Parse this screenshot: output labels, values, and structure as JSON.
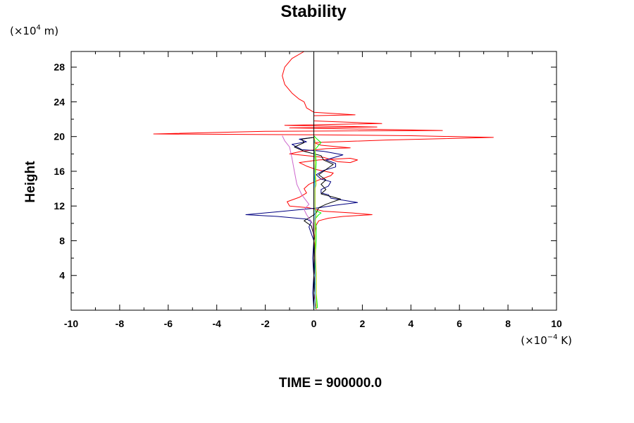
{
  "chart_data": {
    "type": "line",
    "title": "Stability",
    "ylabel": "Height",
    "xlabel": "",
    "y_unit": {
      "base": "(×10",
      "exp": "4",
      "suffix": " m)"
    },
    "x_unit": {
      "base": "(×10",
      "exp": "−4",
      "suffix": " K)"
    },
    "xlim": [
      -10,
      10
    ],
    "ylim": [
      0,
      29.8
    ],
    "x_ticks": [
      -10,
      -8,
      -6,
      -4,
      -2,
      0,
      2,
      4,
      6,
      8,
      10
    ],
    "y_ticks": [
      4,
      8,
      12,
      16,
      20,
      24,
      28
    ],
    "footer": "TIME = 900000.0",
    "grid": false,
    "series": [
      {
        "color": "#ff0000",
        "points": [
          [
            0.1,
            0.1
          ],
          [
            0.05,
            1
          ],
          [
            0,
            2
          ],
          [
            0.05,
            3
          ],
          [
            0,
            4
          ],
          [
            0.05,
            5
          ],
          [
            0.02,
            6
          ],
          [
            0.05,
            7
          ],
          [
            0,
            8
          ],
          [
            0.05,
            9
          ],
          [
            0.1,
            9.8
          ],
          [
            0.2,
            10.3
          ],
          [
            0.6,
            10.6
          ],
          [
            1.2,
            10.8
          ],
          [
            2.4,
            11.0
          ],
          [
            1.6,
            11.2
          ],
          [
            0.4,
            11.4
          ],
          [
            -0.2,
            11.8
          ],
          [
            -1.0,
            12.0
          ],
          [
            -1.1,
            12.5
          ],
          [
            -0.6,
            13.0
          ],
          [
            -0.3,
            13.5
          ],
          [
            -0.4,
            14.0
          ],
          [
            -0.2,
            14.5
          ],
          [
            0.2,
            15.0
          ],
          [
            0.7,
            15.5
          ],
          [
            0.8,
            15.8
          ],
          [
            0.1,
            16.2
          ],
          [
            -0.3,
            16.6
          ],
          [
            -0.6,
            17.0
          ],
          [
            0.2,
            17.3
          ],
          [
            1.5,
            17.5
          ],
          [
            1.8,
            17.3
          ],
          [
            1.5,
            17.0
          ],
          [
            1.0,
            17.1
          ],
          [
            0.4,
            17.6
          ],
          [
            -1.0,
            18.0
          ],
          [
            -0.5,
            18.3
          ],
          [
            0.5,
            18.6
          ],
          [
            1.5,
            18.7
          ],
          [
            0.3,
            19.0
          ],
          [
            0.0,
            19.3
          ],
          [
            3.0,
            19.6
          ],
          [
            7.4,
            19.9
          ],
          [
            4.0,
            20.1
          ],
          [
            0.2,
            20.2
          ],
          [
            -6.6,
            20.3
          ],
          [
            -2.0,
            20.6
          ],
          [
            5.3,
            20.7
          ],
          [
            -1.0,
            21.0
          ],
          [
            2.6,
            21.1
          ],
          [
            -1.2,
            21.3
          ],
          [
            2.8,
            21.5
          ],
          [
            0.0,
            21.8
          ],
          [
            0.0,
            22.4
          ],
          [
            1.7,
            22.5
          ],
          [
            0.0,
            22.8
          ],
          [
            -0.3,
            23.3
          ],
          [
            -0.4,
            24.0
          ],
          [
            -0.6,
            24.3
          ],
          [
            -0.9,
            25.0
          ],
          [
            -1.2,
            26.0
          ],
          [
            -1.3,
            27.0
          ],
          [
            -1.2,
            28.0
          ],
          [
            -0.9,
            29.0
          ],
          [
            -0.4,
            29.8
          ]
        ]
      },
      {
        "color": "#000080",
        "points": [
          [
            0,
            0.3
          ],
          [
            -0.05,
            2
          ],
          [
            0,
            4
          ],
          [
            -0.05,
            6
          ],
          [
            0,
            8
          ],
          [
            -0.2,
            9.6
          ],
          [
            -0.1,
            10.2
          ],
          [
            -0.3,
            10.5
          ],
          [
            -1.5,
            10.8
          ],
          [
            -2.8,
            11.0
          ],
          [
            -1.6,
            11.3
          ],
          [
            -0.5,
            11.6
          ],
          [
            0.2,
            11.8
          ],
          [
            0.9,
            12.1
          ],
          [
            1.8,
            12.4
          ],
          [
            0.7,
            12.9
          ],
          [
            0.6,
            13.3
          ],
          [
            0.3,
            13.5
          ],
          [
            0.3,
            13.9
          ],
          [
            0.6,
            14.3
          ],
          [
            0.7,
            14.8
          ],
          [
            0.3,
            15.1
          ],
          [
            0.1,
            15.6
          ],
          [
            0.4,
            16.1
          ],
          [
            0.9,
            16.5
          ],
          [
            0.9,
            16.9
          ],
          [
            0.5,
            17.3
          ],
          [
            1.2,
            17.9
          ],
          [
            0.4,
            18.3
          ],
          [
            -0.5,
            18.5
          ],
          [
            -0.9,
            19.1
          ],
          [
            -0.3,
            19.4
          ],
          [
            -0.6,
            19.7
          ],
          [
            0,
            19.9
          ]
        ]
      },
      {
        "color": "#000000",
        "points": [
          [
            0,
            0.3
          ],
          [
            0,
            2
          ],
          [
            0.05,
            4
          ],
          [
            0,
            6
          ],
          [
            0.05,
            8
          ],
          [
            -0.1,
            9.7
          ],
          [
            -0.4,
            10.3
          ],
          [
            -0.1,
            10.8
          ],
          [
            0.1,
            11.2
          ],
          [
            0.2,
            11.8
          ],
          [
            0.5,
            12.2
          ],
          [
            1.1,
            12.8
          ],
          [
            0.3,
            13.4
          ],
          [
            0.5,
            13.9
          ],
          [
            0.3,
            14.5
          ],
          [
            0.5,
            15.0
          ],
          [
            0.2,
            15.6
          ],
          [
            0.5,
            16.2
          ],
          [
            0.8,
            16.8
          ],
          [
            0.4,
            17.3
          ],
          [
            0.3,
            17.8
          ],
          [
            -0.4,
            18.3
          ],
          [
            -0.8,
            18.8
          ],
          [
            -0.4,
            19.3
          ],
          [
            -0.5,
            19.7
          ],
          [
            0,
            19.9
          ]
        ]
      },
      {
        "color": "#cc66cc",
        "points": [
          [
            0,
            0.3
          ],
          [
            0,
            4
          ],
          [
            0,
            8
          ],
          [
            -0.05,
            10
          ],
          [
            -0.3,
            11.0
          ],
          [
            -0.4,
            11.6
          ],
          [
            -0.2,
            12.2
          ],
          [
            -0.5,
            13.3
          ],
          [
            -0.7,
            14.5
          ],
          [
            -0.8,
            16.0
          ],
          [
            -0.9,
            17.5
          ],
          [
            -1.0,
            18.8
          ],
          [
            -1.2,
            19.5
          ],
          [
            -1.3,
            20.1
          ]
        ]
      },
      {
        "color": "#00ff00",
        "points": [
          [
            0.05,
            0.2
          ],
          [
            0.15,
            0.3
          ],
          [
            0.1,
            2
          ],
          [
            0.1,
            4
          ],
          [
            0.05,
            6
          ],
          [
            0.1,
            8
          ],
          [
            0.1,
            9.5
          ],
          [
            0.05,
            10.5
          ],
          [
            0.2,
            11.0
          ],
          [
            0.3,
            11.2
          ],
          [
            0.05,
            11.5
          ],
          [
            0.05,
            13
          ],
          [
            0.05,
            15
          ],
          [
            0.1,
            17
          ],
          [
            0.05,
            18.5
          ],
          [
            0.2,
            19.0
          ],
          [
            0.3,
            19.3
          ],
          [
            0.1,
            19.8
          ],
          [
            0.0,
            20.1
          ]
        ]
      },
      {
        "color": "#00a0ff",
        "points": [
          [
            0.05,
            0.2
          ],
          [
            0.05,
            4
          ],
          [
            0.05,
            8
          ],
          [
            0.05,
            11
          ],
          [
            0.05,
            14
          ],
          [
            0.0,
            17
          ],
          [
            0.05,
            19
          ],
          [
            0.0,
            20.0
          ]
        ]
      },
      {
        "color": "#cccc00",
        "points": [
          [
            0.1,
            0.2
          ],
          [
            0.1,
            4
          ],
          [
            0.05,
            8
          ],
          [
            0.05,
            10
          ],
          [
            0.1,
            11.0
          ],
          [
            0.05,
            12
          ],
          [
            0.05,
            14
          ],
          [
            0.1,
            14.5
          ],
          [
            0.05,
            16
          ],
          [
            0.05,
            18
          ],
          [
            0.05,
            19.5
          ],
          [
            0.0,
            20.0
          ]
        ]
      }
    ]
  }
}
